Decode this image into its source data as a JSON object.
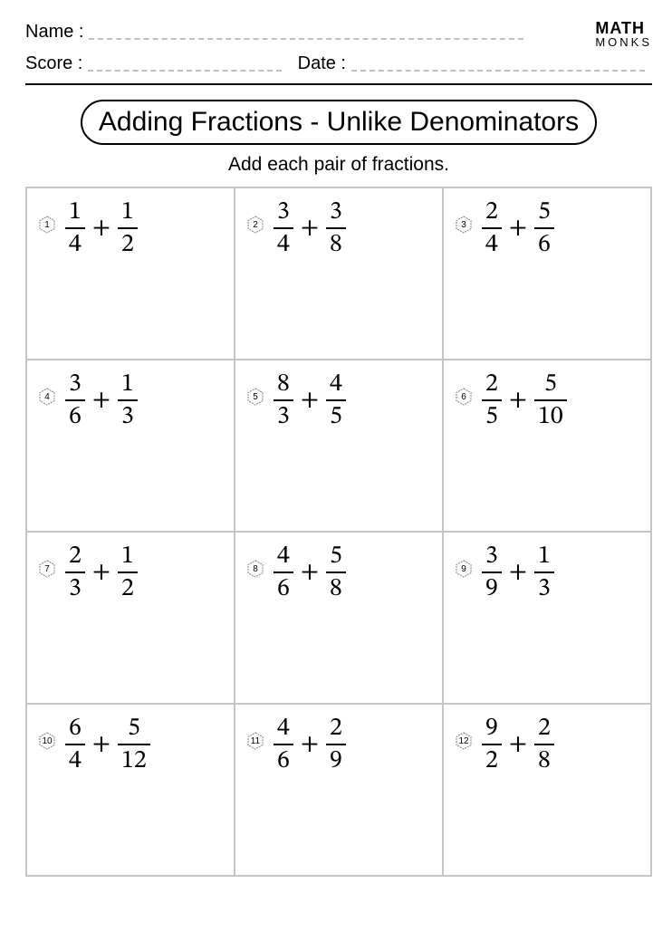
{
  "header": {
    "name_label": "Name :",
    "score_label": "Score :",
    "date_label": "Date :",
    "brand_top": "MATH",
    "brand_bottom": "MONKS"
  },
  "title": "Adding Fractions - Unlike Denominators",
  "instruction": "Add each pair of fractions.",
  "grid": {
    "columns": 3,
    "rows": 4,
    "cell_border_color": "#c6c6c6"
  },
  "hex_stroke": "#808080",
  "problems": [
    {
      "n": "1",
      "a_num": "1",
      "a_den": "4",
      "b_num": "1",
      "b_den": "2"
    },
    {
      "n": "2",
      "a_num": "3",
      "a_den": "4",
      "b_num": "3",
      "b_den": "8"
    },
    {
      "n": "3",
      "a_num": "2",
      "a_den": "4",
      "b_num": "5",
      "b_den": "6"
    },
    {
      "n": "4",
      "a_num": "3",
      "a_den": "6",
      "b_num": "1",
      "b_den": "3"
    },
    {
      "n": "5",
      "a_num": "8",
      "a_den": "3",
      "b_num": "4",
      "b_den": "5"
    },
    {
      "n": "6",
      "a_num": "2",
      "a_den": "5",
      "b_num": "5",
      "b_den": "10"
    },
    {
      "n": "7",
      "a_num": "2",
      "a_den": "3",
      "b_num": "1",
      "b_den": "2"
    },
    {
      "n": "8",
      "a_num": "4",
      "a_den": "6",
      "b_num": "5",
      "b_den": "8"
    },
    {
      "n": "9",
      "a_num": "3",
      "a_den": "9",
      "b_num": "1",
      "b_den": "3"
    },
    {
      "n": "10",
      "a_num": "6",
      "a_den": "4",
      "b_num": "5",
      "b_den": "12"
    },
    {
      "n": "11",
      "a_num": "4",
      "a_den": "6",
      "b_num": "2",
      "b_den": "9"
    },
    {
      "n": "12",
      "a_num": "9",
      "a_den": "2",
      "b_num": "2",
      "b_den": "8"
    }
  ]
}
